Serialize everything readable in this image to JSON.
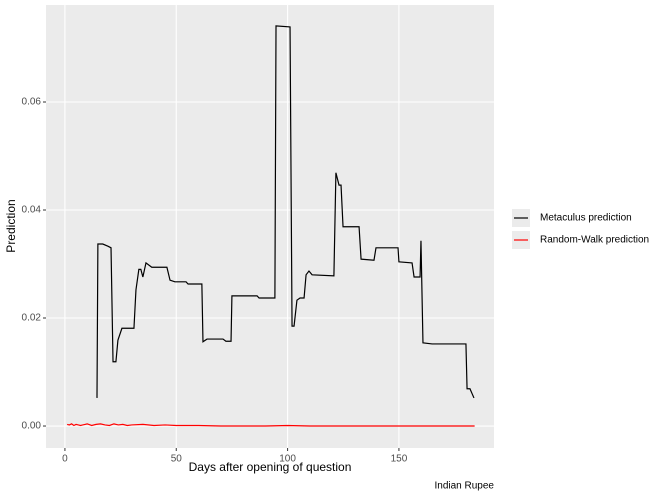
{
  "chart_data": {
    "type": "line",
    "x_label": "Days after opening of question",
    "y_label": "Prediction",
    "caption": "Indian Rupee",
    "xlim": [
      -8.5,
      192.7
    ],
    "ylim": [
      -0.00407,
      0.07796
    ],
    "xticks": [
      0,
      50,
      100,
      150
    ],
    "yticks": [
      {
        "value": 0,
        "label": "0.00"
      },
      {
        "value": 0.02,
        "label": "0.02"
      },
      {
        "value": 0.04,
        "label": "0.04"
      },
      {
        "value": 0.06,
        "label": "0.06"
      }
    ],
    "grid": true,
    "legend": "right",
    "series": [
      {
        "name": "Metaculus prediction",
        "color": "#000000",
        "x": [
          14.4,
          14.8,
          17,
          19.3,
          20.7,
          21.6,
          22.9,
          23.8,
          25.6,
          31,
          31.9,
          33.2,
          34.1,
          35,
          36.4,
          39,
          45.8,
          47.2,
          49.4,
          54.4,
          55.3,
          61.5,
          62,
          63.8,
          71,
          72.3,
          74.6,
          75,
          86.3,
          87.2,
          94.3,
          94.8,
          101.1,
          102,
          102.9,
          104.2,
          105.6,
          107.4,
          108.3,
          109.6,
          111,
          120.8,
          121.7,
          123.1,
          124,
          124.9,
          132.1,
          133,
          138.8,
          139.7,
          149.6,
          150,
          155.9,
          156.8,
          159.5,
          159.9,
          160.8,
          164.9,
          180.1,
          180.6,
          181.9,
          183.7
        ],
        "values": [
          0.0052,
          0.0337,
          0.0337,
          0.0333,
          0.033,
          0.0119,
          0.0119,
          0.0159,
          0.0181,
          0.0181,
          0.0252,
          0.029,
          0.029,
          0.0276,
          0.0302,
          0.0294,
          0.0294,
          0.027,
          0.0267,
          0.0267,
          0.0263,
          0.0263,
          0.0156,
          0.0161,
          0.0161,
          0.0157,
          0.0157,
          0.0241,
          0.0241,
          0.0237,
          0.0237,
          0.0741,
          0.0739,
          0.0185,
          0.0185,
          0.0233,
          0.0237,
          0.0237,
          0.028,
          0.0287,
          0.028,
          0.0278,
          0.0469,
          0.0446,
          0.0446,
          0.0369,
          0.0369,
          0.0309,
          0.0307,
          0.033,
          0.033,
          0.0304,
          0.0302,
          0.0276,
          0.0276,
          0.0343,
          0.0154,
          0.0152,
          0.0152,
          0.0069,
          0.0069,
          0.0052
        ]
      },
      {
        "name": "Random-Walk prediction",
        "color": "#ff0000",
        "x": [
          1,
          2,
          3,
          4,
          5,
          6,
          7,
          8,
          9,
          10,
          12,
          14,
          16,
          18,
          20,
          22,
          24,
          26,
          28,
          30,
          35,
          40,
          45,
          50,
          60,
          70,
          80,
          90,
          100,
          110,
          120,
          140,
          160,
          184
        ],
        "values": [
          0.0003,
          0.0002,
          0.0004,
          0.0001,
          0.0003,
          0.0002,
          0.0001,
          0.0002,
          0.0003,
          0.0004,
          0.0001,
          0.0003,
          0.0004,
          0.0002,
          0.0001,
          0.0004,
          0.0002,
          0.0003,
          0.0001,
          0.0002,
          0.0003,
          0.0001,
          0.0002,
          0.0001,
          0.0001,
          0.0,
          0.0,
          0.0,
          0.0001,
          0.0,
          0.0,
          0.0,
          0.0,
          0.0
        ]
      }
    ]
  }
}
